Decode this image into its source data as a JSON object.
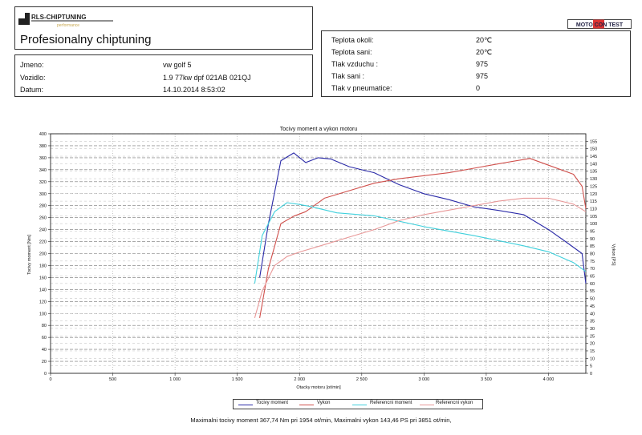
{
  "header": {
    "brand": "RLS-CHIPTUNING",
    "brand_tagline": "performance",
    "headline": "Profesionalny chiptuning",
    "badge": "MOTO CON TEST"
  },
  "client": {
    "rows": [
      {
        "label": "Jmeno:",
        "value": "vw golf 5"
      },
      {
        "label": "Vozidlo:",
        "value": "1.9 77kw dpf 021AB 021QJ"
      },
      {
        "label": "Datum:",
        "value": "14.10.2014 8:53:02"
      }
    ]
  },
  "conditions": {
    "rows": [
      {
        "label": "Teplota okoli:",
        "value": "20℃"
      },
      {
        "label": "Teplota sani:",
        "value": "20℃"
      },
      {
        "label": "Tlak vzduchu :",
        "value": "975"
      },
      {
        "label": "Tlak sani :",
        "value": "975"
      },
      {
        "label": "Tlak v pneumatice:",
        "value": "0"
      }
    ]
  },
  "footer": "Maximalni tocivy moment 367,74 Nm pri 1954 ot/min,  Maximalni vykon 143,46 PS pri 3851 ot/min,",
  "colors": {
    "torque": "#2b2ba8",
    "power": "#d0504c",
    "ref_torque": "#40d0dc",
    "ref_power": "#e89898"
  },
  "chart_data": {
    "type": "line",
    "title": "Tocivy moment a vykon motoru",
    "xlabel": "Otacky motoru [ot/min]",
    "ylabel": "Tocivy moment [Nm]",
    "y2label": "Vykon [PS]",
    "xlim": [
      0,
      4300
    ],
    "ylim": [
      0,
      400
    ],
    "y2lim": [
      0,
      160
    ],
    "x_ticks": [
      0,
      500,
      1000,
      1500,
      2000,
      2500,
      3000,
      3500,
      4000
    ],
    "x_tick_labels": [
      "0",
      "500",
      "1 000",
      "1 500",
      "2 000",
      "2 500",
      "3 000",
      "3 500",
      "4 000"
    ],
    "y_ticks": [
      0,
      20,
      40,
      60,
      80,
      100,
      120,
      140,
      160,
      180,
      200,
      220,
      240,
      260,
      280,
      300,
      320,
      340,
      360,
      380,
      400
    ],
    "y2_ticks": [
      0,
      5,
      10,
      15,
      20,
      25,
      30,
      35,
      40,
      45,
      50,
      55,
      60,
      65,
      70,
      75,
      80,
      85,
      90,
      95,
      100,
      105,
      110,
      115,
      120,
      125,
      130,
      135,
      140,
      145,
      150,
      155
    ],
    "grid": true,
    "legend_position": "bottom-center",
    "series": [
      {
        "name": "Tocivy moment",
        "axis": "left",
        "x": [
          1680,
          1750,
          1850,
          1954,
          2050,
          2150,
          2250,
          2400,
          2600,
          2800,
          3000,
          3200,
          3400,
          3600,
          3800,
          4000,
          4150,
          4270,
          4300
        ],
        "y": [
          160,
          250,
          355,
          368,
          352,
          360,
          358,
          345,
          335,
          315,
          300,
          290,
          278,
          272,
          265,
          240,
          218,
          200,
          150
        ]
      },
      {
        "name": "Vykon",
        "axis": "right",
        "x": [
          1680,
          1750,
          1850,
          1954,
          2050,
          2200,
          2400,
          2600,
          2800,
          3000,
          3200,
          3400,
          3600,
          3851,
          4000,
          4200,
          4270,
          4300
        ],
        "y": [
          37,
          70,
          100,
          105,
          108,
          117,
          122,
          127,
          130,
          132,
          134,
          137,
          140,
          143.5,
          139,
          133,
          125,
          110
        ]
      },
      {
        "name": "Referencni moment",
        "axis": "left",
        "x": [
          1640,
          1700,
          1800,
          1900,
          2000,
          2100,
          2300,
          2600,
          3000,
          3400,
          3800,
          4000,
          4200,
          4300
        ],
        "y": [
          150,
          230,
          270,
          285,
          282,
          278,
          268,
          263,
          245,
          230,
          213,
          203,
          185,
          170
        ]
      },
      {
        "name": "Referencni vykon",
        "axis": "right",
        "x": [
          1640,
          1700,
          1800,
          1900,
          2000,
          2200,
          2400,
          2600,
          2800,
          3000,
          3200,
          3400,
          3600,
          3800,
          4000,
          4200,
          4300
        ],
        "y": [
          37,
          55,
          72,
          78,
          81,
          86,
          91,
          96,
          102,
          106,
          109,
          112,
          115,
          117,
          117,
          113,
          108
        ]
      }
    ]
  }
}
